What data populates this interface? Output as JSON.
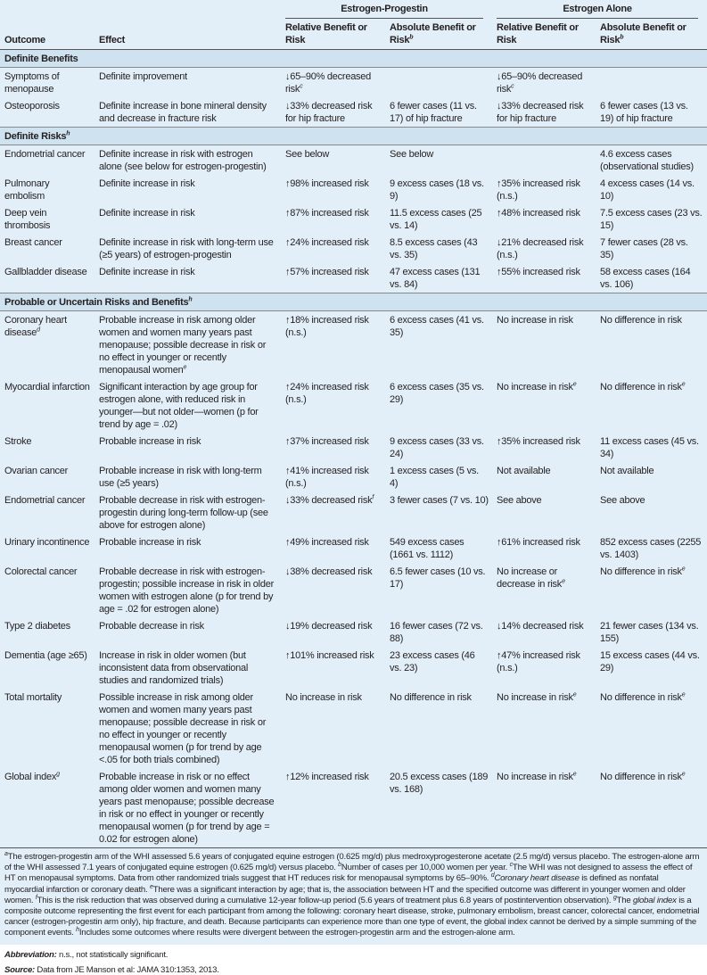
{
  "header": {
    "group1": "Estrogen-Progestin",
    "group2": "Estrogen Alone",
    "columns": [
      "Outcome",
      "Effect",
      {
        "t": "Relative Benefit or Risk"
      },
      {
        "t": "Absolute Benefit or Risk",
        "sup": "b"
      },
      {
        "t": "Relative Benefit or Risk"
      },
      {
        "t": "Absolute Benefit or Risk",
        "sup": "b"
      }
    ]
  },
  "sections": [
    {
      "title": "Definite Benefits",
      "sup": "",
      "rows": [
        [
          "Symptoms of menopause",
          "Definite improvement",
          {
            "t": "↓65–90% decreased risk",
            "sup": "c"
          },
          "",
          {
            "t": "↓65–90% decreased risk",
            "sup": "c"
          },
          ""
        ],
        [
          "Osteoporosis",
          "Definite increase in bone mineral density and decrease in fracture risk",
          "↓33% decreased risk for hip fracture",
          "6 fewer cases (11 vs. 17) of hip fracture",
          "↓33% decreased risk for hip fracture",
          "6 fewer cases (13 vs. 19) of hip fracture"
        ]
      ]
    },
    {
      "title": "Definite Risks",
      "sup": "h",
      "rows": [
        [
          "Endometrial cancer",
          "Definite increase in risk with estrogen alone (see below for estrogen-progestin)",
          "See below",
          "See below",
          "",
          "4.6 excess cases (observational studies)"
        ],
        [
          "Pulmonary embolism",
          "Definite increase in risk",
          "↑98% increased risk",
          "9 excess cases (18 vs. 9)",
          "↑35% increased risk (n.s.)",
          "4 excess cases (14 vs. 10)"
        ],
        [
          "Deep vein thrombosis",
          "Definite increase in risk",
          "↑87% increased risk",
          "11.5 excess cases (25 vs. 14)",
          "↑48% increased risk",
          "7.5 excess cases (23 vs. 15)"
        ],
        [
          "Breast cancer",
          "Definite increase in risk with long-term use (≥5 years) of estrogen-progestin",
          "↑24% increased risk",
          "8.5 excess cases (43 vs. 35)",
          "↓21% decreased risk (n.s.)",
          "7 fewer cases (28 vs. 35)"
        ],
        [
          "Gallbladder disease",
          "Definite increase in risk",
          "↑57% increased risk",
          "47 excess cases (131 vs. 84)",
          "↑55% increased risk",
          "58 excess cases (164 vs. 106)"
        ]
      ]
    },
    {
      "title": "Probable or Uncertain Risks and Benefits",
      "sup": "h",
      "rows": [
        [
          {
            "t": "Coronary heart disease",
            "sup": "d"
          },
          {
            "t": "Probable increase in risk among older women and women many years past menopause; possible decrease in risk or no effect in younger or recently menopausal women",
            "sup": "e"
          },
          "↑18% increased risk (n.s.)",
          "6 excess cases (41 vs. 35)",
          "No increase in risk",
          "No difference in risk"
        ],
        [
          "Myocardial infarction",
          "Significant interaction by age group for estrogen alone, with reduced risk in younger—but not older—women (p for trend by age = .02)",
          "↑24% increased risk (n.s.)",
          "6 excess cases (35 vs. 29)",
          {
            "t": "No increase in risk",
            "sup": "e"
          },
          {
            "t": "No difference in risk",
            "sup": "e"
          }
        ],
        [
          "Stroke",
          "Probable increase in risk",
          "↑37% increased risk",
          "9 excess cases (33 vs. 24)",
          "↑35% increased risk",
          "11 excess cases (45 vs. 34)"
        ],
        [
          "Ovarian cancer",
          "Probable increase in risk with long-term use (≥5 years)",
          "↑41% increased risk (n.s.)",
          "1 excess cases (5 vs. 4)",
          "Not available",
          "Not available"
        ],
        [
          "Endometrial cancer",
          "Probable decrease in risk with estrogen-progestin during long-term follow-up (see above for estrogen alone)",
          {
            "t": "↓33% decreased risk",
            "sup": "f"
          },
          "3 fewer cases (7 vs. 10)",
          "See above",
          "See above"
        ],
        [
          "Urinary incontinence",
          "Probable increase in risk",
          "↑49% increased risk",
          "549 excess cases (1661 vs. 1112)",
          "↑61% increased risk",
          "852 excess cases (2255 vs. 1403)"
        ],
        [
          "Colorectal cancer",
          "Probable decrease in risk with estrogen-progestin; possible increase in risk in older women with estrogen alone (p for trend by age = .02 for estrogen alone)",
          "↓38% decreased risk",
          "6.5 fewer cases (10 vs. 17)",
          {
            "t": "No increase or decrease in risk",
            "sup": "e"
          },
          {
            "t": "No difference in risk",
            "sup": "e"
          }
        ],
        [
          "Type 2 diabetes",
          "Probable decrease in risk",
          "↓19% decreased risk",
          "16 fewer cases (72 vs. 88)",
          "↓14% decreased risk",
          "21 fewer cases (134 vs. 155)"
        ],
        [
          "Dementia (age ≥65)",
          "Increase in risk in older women (but inconsistent data from observational studies and randomized trials)",
          "↑101% increased risk",
          "23 excess cases (46 vs. 23)",
          "↑47% increased risk (n.s.)",
          "15 excess cases (44 vs. 29)"
        ],
        [
          "Total mortality",
          "Possible increase in risk among older women and women many years past menopause; possible decrease in risk or no effect in younger or recently menopausal women (p for trend by age <.05 for both trials combined)",
          "No increase in risk",
          "No difference in risk",
          {
            "t": "No increase in risk",
            "sup": "e"
          },
          {
            "t": "No difference in risk",
            "sup": "e"
          }
        ],
        [
          {
            "t": "Global index",
            "sup": "g"
          },
          "Probable increase in risk or no effect among older women and women many years past menopause; possible decrease in risk or no effect in younger or recently menopausal women (p for trend by age = 0.02 for estrogen alone)",
          "↑12% increased risk",
          "20.5 excess cases (189 vs. 168)",
          {
            "t": "No increase in risk",
            "sup": "e"
          },
          {
            "t": "No difference in risk",
            "sup": "e"
          }
        ]
      ]
    }
  ],
  "footnotes": [
    {
      "sup": "a",
      "t": "The estrogen-progestin arm of the WHI assessed 5.6 years of conjugated equine estrogen (0.625 mg/d) plus medroxyprogesterone acetate (2.5 mg/d) versus placebo. The estrogen-alone arm of the WHI assessed 7.1 years of conjugated equine estrogen (0.625 mg/d) versus placebo. "
    },
    {
      "sup": "b",
      "t": "Number of cases per 10,000 women per year. "
    },
    {
      "sup": "c",
      "t": "The WHI was not designed to assess the effect of HT on menopausal symptoms. Data from other randomized trials suggest that HT reduces risk for menopausal symptoms by 65–90%. "
    },
    {
      "sup": "d",
      "i": "Coronary heart disease",
      "t": " is defined as nonfatal myocardial infarction or coronary death. "
    },
    {
      "sup": "e",
      "t": "There was a significant interaction by age; that is, the association between HT and the specified outcome was different in younger women and older women. "
    },
    {
      "sup": "f",
      "t": "This is the risk reduction that was observed during a cumulative 12-year follow-up period (5.6 years of treatment plus 6.8 years of postintervention observation). "
    },
    {
      "sup": "g",
      "pre": "The ",
      "i": "global index",
      "t": " is a composite outcome representing the first event for each participant from among the following: coronary heart disease, stroke, pulmonary embolism, breast cancer, colorectal cancer, endometrial cancer (estrogen-progestin arm only), hip fracture, and death. Because participants can experience more than one type of event, the global index cannot be derived by a simple summing of the component events. "
    },
    {
      "sup": "h",
      "t": "Includes some outcomes where results were divergent between the estrogen-progestin arm and the estrogen-alone arm."
    }
  ],
  "abbreviation": {
    "label": "Abbreviation:",
    "text": " n.s., not statistically significant."
  },
  "source": {
    "label": "Source:",
    "text": " Data from JE Manson et al: JAMA 310:1353, 2013."
  }
}
